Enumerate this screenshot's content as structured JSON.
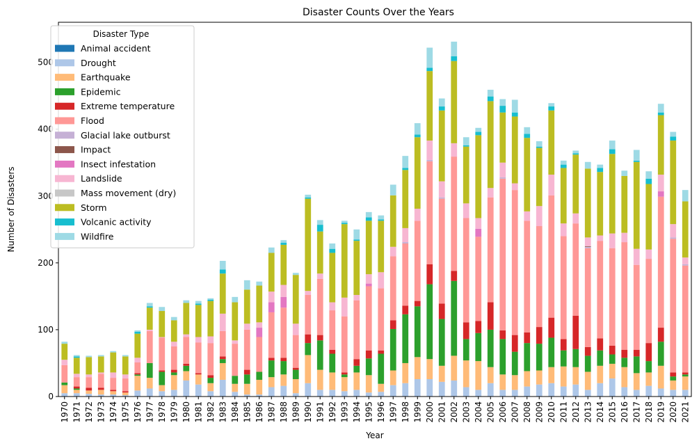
{
  "chart_data": {
    "type": "bar",
    "stacked": true,
    "title": "Disaster Counts Over the Years",
    "xlabel": "Year",
    "ylabel": "Number of Disasters",
    "ylim": [
      0,
      560
    ],
    "yticks": [
      0,
      100,
      200,
      300,
      400,
      500
    ],
    "grid": false,
    "legend": {
      "title": "Disaster Type",
      "placement": "top-left"
    },
    "categories": [
      "1970",
      "1971",
      "1972",
      "1973",
      "1974",
      "1975",
      "1976",
      "1977",
      "1978",
      "1979",
      "1980",
      "1981",
      "1982",
      "1983",
      "1984",
      "1985",
      "1986",
      "1987",
      "1988",
      "1989",
      "1990",
      "1991",
      "1992",
      "1993",
      "1994",
      "1995",
      "1996",
      "1997",
      "1998",
      "1999",
      "2000",
      "2001",
      "2002",
      "2003",
      "2004",
      "2005",
      "2006",
      "2007",
      "2008",
      "2009",
      "2010",
      "2011",
      "2012",
      "2013",
      "2014",
      "2015",
      "2016",
      "2017",
      "2018",
      "2019",
      "2020",
      "2021"
    ],
    "series": [
      {
        "name": "Animal accident",
        "color": "#1f77b4",
        "values": [
          0,
          0,
          0,
          0,
          0,
          0,
          0,
          0,
          0,
          0,
          0,
          0,
          0,
          0,
          0,
          0,
          0,
          0,
          0,
          0,
          0,
          0,
          0,
          0,
          0,
          0,
          0,
          0,
          0,
          0,
          0,
          0,
          0,
          0,
          0,
          0,
          0,
          0,
          0,
          0,
          0,
          0,
          0,
          0,
          0,
          0,
          0,
          0,
          0,
          0,
          0,
          0
        ]
      },
      {
        "name": "Drought",
        "color": "#aec7e8",
        "values": [
          5,
          5,
          4,
          3,
          3,
          2,
          9,
          12,
          8,
          10,
          24,
          18,
          8,
          25,
          7,
          3,
          3,
          14,
          16,
          5,
          20,
          10,
          10,
          8,
          10,
          6,
          7,
          17,
          20,
          26,
          26,
          22,
          24,
          14,
          10,
          20,
          10,
          10,
          15,
          18,
          20,
          15,
          18,
          10,
          20,
          27,
          14,
          10,
          16,
          12,
          10,
          10
        ]
      },
      {
        "name": "Earthquake",
        "color": "#ffbb78",
        "values": [
          12,
          5,
          5,
          7,
          5,
          4,
          22,
          16,
          9,
          22,
          14,
          15,
          12,
          25,
          12,
          16,
          22,
          15,
          17,
          21,
          42,
          30,
          26,
          21,
          26,
          26,
          12,
          22,
          30,
          33,
          30,
          24,
          37,
          40,
          43,
          24,
          23,
          22,
          23,
          21,
          24,
          30,
          26,
          27,
          26,
          22,
          30,
          25,
          20,
          34,
          14,
          20
        ]
      },
      {
        "name": "Epidemic",
        "color": "#2ca02c",
        "values": [
          4,
          2,
          0,
          0,
          0,
          0,
          2,
          22,
          20,
          4,
          8,
          0,
          8,
          6,
          12,
          14,
          12,
          25,
          20,
          14,
          18,
          44,
          28,
          4,
          10,
          25,
          45,
          62,
          73,
          76,
          112,
          70,
          112,
          32,
          42,
          56,
          53,
          35,
          42,
          40,
          44,
          24,
          27,
          24,
          23,
          14,
          14,
          25,
          17,
          36,
          6,
          3
        ]
      },
      {
        "name": "Extreme temperature",
        "color": "#d62728",
        "values": [
          0,
          3,
          4,
          3,
          2,
          2,
          2,
          0,
          2,
          4,
          3,
          2,
          4,
          4,
          0,
          7,
          0,
          4,
          5,
          3,
          13,
          8,
          6,
          3,
          10,
          12,
          5,
          13,
          13,
          8,
          30,
          23,
          15,
          25,
          18,
          41,
          13,
          25,
          16,
          25,
          30,
          17,
          50,
          13,
          18,
          13,
          12,
          10,
          27,
          21,
          6,
          3
        ]
      },
      {
        "name": "Flood",
        "color": "#ff9896",
        "values": [
          26,
          14,
          16,
          21,
          18,
          19,
          16,
          48,
          49,
          35,
          40,
          46,
          48,
          38,
          48,
          60,
          52,
          68,
          75,
          49,
          59,
          84,
          59,
          84,
          88,
          96,
          93,
          96,
          93,
          120,
          154,
          157,
          171,
          156,
          126,
          157,
          227,
          217,
          167,
          151,
          183,
          154,
          138,
          148,
          146,
          146,
          161,
          127,
          126,
          196,
          200,
          160
        ]
      },
      {
        "name": "Glacial lake outburst",
        "color": "#c5b0d5",
        "values": [
          0,
          0,
          0,
          0,
          0,
          0,
          0,
          0,
          0,
          0,
          0,
          0,
          0,
          0,
          0,
          0,
          0,
          0,
          0,
          0,
          0,
          0,
          0,
          0,
          0,
          0,
          0,
          0,
          2,
          0,
          2,
          2,
          0,
          0,
          0,
          0,
          2,
          0,
          0,
          0,
          0,
          0,
          0,
          2,
          0,
          0,
          0,
          0,
          0,
          0,
          2,
          2
        ]
      },
      {
        "name": "Impact",
        "color": "#8c564b",
        "values": [
          0,
          0,
          0,
          0,
          0,
          0,
          0,
          0,
          0,
          0,
          0,
          0,
          0,
          0,
          0,
          0,
          0,
          0,
          0,
          0,
          0,
          0,
          0,
          0,
          0,
          0,
          0,
          0,
          0,
          0,
          0,
          0,
          0,
          0,
          0,
          0,
          0,
          0,
          0,
          0,
          0,
          0,
          0,
          1,
          0,
          0,
          0,
          0,
          0,
          0,
          0,
          0
        ]
      },
      {
        "name": "Insect infestation",
        "color": "#e377c2",
        "values": [
          0,
          0,
          0,
          0,
          0,
          0,
          0,
          0,
          0,
          0,
          0,
          0,
          0,
          0,
          0,
          0,
          14,
          15,
          16,
          0,
          0,
          0,
          0,
          0,
          0,
          4,
          0,
          0,
          0,
          0,
          0,
          0,
          0,
          0,
          12,
          0,
          0,
          0,
          0,
          0,
          0,
          0,
          0,
          0,
          0,
          0,
          0,
          0,
          0,
          8,
          0,
          0
        ]
      },
      {
        "name": "Landslide",
        "color": "#f7b6d2",
        "values": [
          8,
          5,
          4,
          2,
          8,
          6,
          7,
          2,
          1,
          7,
          4,
          8,
          10,
          26,
          5,
          9,
          8,
          16,
          18,
          17,
          6,
          8,
          12,
          28,
          8,
          14,
          24,
          14,
          21,
          18,
          29,
          24,
          20,
          22,
          16,
          14,
          22,
          10,
          14,
          30,
          31,
          19,
          15,
          13,
          8,
          22,
          14,
          24,
          14,
          25,
          20,
          10
        ]
      },
      {
        "name": "Mass movement (dry)",
        "color": "#c7c7c7",
        "values": [
          0,
          0,
          0,
          0,
          0,
          0,
          0,
          0,
          0,
          0,
          0,
          0,
          0,
          0,
          0,
          0,
          0,
          0,
          0,
          0,
          0,
          0,
          0,
          0,
          0,
          0,
          0,
          0,
          0,
          0,
          0,
          0,
          0,
          0,
          0,
          0,
          0,
          0,
          0,
          0,
          0,
          0,
          0,
          0,
          0,
          0,
          0,
          0,
          0,
          0,
          0,
          0
        ]
      },
      {
        "name": "Storm",
        "color": "#bcbd22",
        "values": [
          24,
          24,
          26,
          24,
          30,
          27,
          36,
          33,
          39,
          32,
          47,
          48,
          53,
          60,
          57,
          51,
          55,
          58,
          60,
          73,
          138,
          63,
          74,
          110,
          81,
          80,
          77,
          77,
          87,
          107,
          104,
          106,
          123,
          85,
          124,
          130,
          75,
          100,
          110,
          87,
          96,
          83,
          88,
          103,
          95,
          119,
          85,
          130,
          98,
          89,
          125,
          84
        ]
      },
      {
        "name": "Volcanic activity",
        "color": "#17becf",
        "values": [
          0,
          2,
          0,
          0,
          0,
          0,
          3,
          2,
          0,
          0,
          0,
          2,
          2,
          6,
          0,
          0,
          0,
          0,
          3,
          0,
          2,
          10,
          6,
          2,
          2,
          5,
          2,
          0,
          3,
          4,
          5,
          6,
          7,
          2,
          5,
          7,
          10,
          6,
          6,
          2,
          6,
          5,
          2,
          0,
          6,
          7,
          0,
          2,
          8,
          4,
          6,
          0
        ]
      },
      {
        "name": "Wildfire",
        "color": "#9edae5",
        "values": [
          3,
          2,
          2,
          2,
          2,
          2,
          2,
          5,
          6,
          5,
          4,
          4,
          2,
          13,
          8,
          14,
          6,
          8,
          4,
          3,
          4,
          7,
          8,
          3,
          15,
          8,
          6,
          16,
          18,
          17,
          30,
          12,
          22,
          12,
          6,
          10,
          10,
          19,
          10,
          8,
          5,
          6,
          4,
          10,
          5,
          13,
          8,
          16,
          11,
          13,
          7,
          17
        ]
      }
    ]
  }
}
